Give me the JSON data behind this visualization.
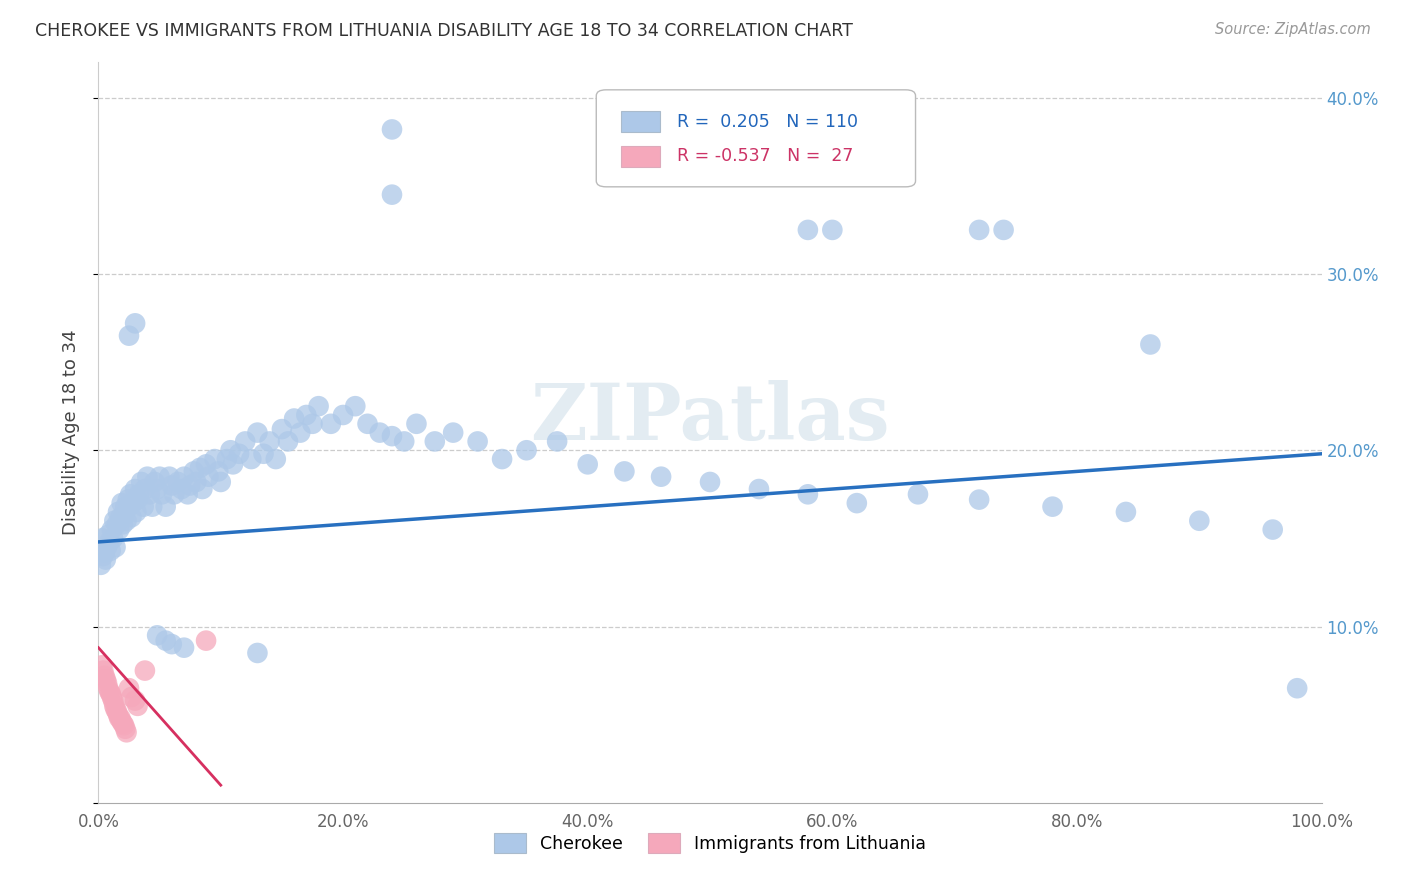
{
  "title": "CHEROKEE VS IMMIGRANTS FROM LITHUANIA DISABILITY AGE 18 TO 34 CORRELATION CHART",
  "source": "Source: ZipAtlas.com",
  "ylabel": "Disability Age 18 to 34",
  "xlim": [
    0.0,
    1.0
  ],
  "ylim": [
    0.0,
    0.42
  ],
  "xtick_vals": [
    0.0,
    0.2,
    0.4,
    0.6,
    0.8,
    1.0
  ],
  "xticklabels": [
    "0.0%",
    "20.0%",
    "40.0%",
    "60.0%",
    "80.0%",
    "100.0%"
  ],
  "ytick_vals": [
    0.0,
    0.1,
    0.2,
    0.3,
    0.4
  ],
  "yticklabels_right": [
    "",
    "10.0%",
    "20.0%",
    "30.0%",
    "40.0%"
  ],
  "cherokee_R": 0.205,
  "cherokee_N": 110,
  "lithuania_R": -0.537,
  "lithuania_N": 27,
  "cherokee_color": "#adc8e8",
  "cherokee_line_color": "#2870c0",
  "lithuania_color": "#f5a8bb",
  "lithuania_line_color": "#d63060",
  "watermark": "ZIPatlas",
  "cherokee_line_x0": 0.0,
  "cherokee_line_y0": 0.148,
  "cherokee_line_x1": 1.0,
  "cherokee_line_y1": 0.198,
  "lithuania_line_x0": 0.0,
  "lithuania_line_y0": 0.088,
  "lithuania_line_x1": 0.1,
  "lithuania_line_y1": 0.01,
  "cherokee_x": [
    0.002,
    0.003,
    0.004,
    0.005,
    0.006,
    0.007,
    0.008,
    0.009,
    0.01,
    0.011,
    0.012,
    0.013,
    0.014,
    0.015,
    0.016,
    0.017,
    0.018,
    0.019,
    0.02,
    0.021,
    0.022,
    0.023,
    0.024,
    0.025,
    0.026,
    0.027,
    0.028,
    0.03,
    0.031,
    0.032,
    0.033,
    0.035,
    0.037,
    0.038,
    0.04,
    0.042,
    0.044,
    0.046,
    0.048,
    0.05,
    0.052,
    0.055,
    0.058,
    0.06,
    0.062,
    0.065,
    0.068,
    0.07,
    0.073,
    0.075,
    0.078,
    0.08,
    0.083,
    0.085,
    0.088,
    0.09,
    0.095,
    0.098,
    0.1,
    0.105,
    0.108,
    0.11,
    0.115,
    0.12,
    0.125,
    0.13,
    0.135,
    0.14,
    0.145,
    0.15,
    0.155,
    0.16,
    0.165,
    0.17,
    0.175,
    0.18,
    0.19,
    0.2,
    0.21,
    0.22,
    0.23,
    0.24,
    0.25,
    0.26,
    0.275,
    0.29,
    0.31,
    0.33,
    0.35,
    0.375,
    0.4,
    0.43,
    0.46,
    0.5,
    0.54,
    0.58,
    0.62,
    0.67,
    0.72,
    0.78,
    0.84,
    0.9,
    0.96,
    0.025,
    0.03,
    0.048,
    0.055,
    0.06,
    0.07,
    0.13
  ],
  "cherokee_y": [
    0.135,
    0.15,
    0.14,
    0.142,
    0.138,
    0.145,
    0.152,
    0.148,
    0.143,
    0.155,
    0.15,
    0.16,
    0.145,
    0.158,
    0.165,
    0.155,
    0.162,
    0.17,
    0.158,
    0.163,
    0.168,
    0.16,
    0.172,
    0.168,
    0.175,
    0.162,
    0.17,
    0.178,
    0.165,
    0.172,
    0.175,
    0.182,
    0.168,
    0.178,
    0.185,
    0.175,
    0.168,
    0.182,
    0.178,
    0.185,
    0.175,
    0.168,
    0.185,
    0.18,
    0.175,
    0.182,
    0.178,
    0.185,
    0.175,
    0.18,
    0.188,
    0.182,
    0.19,
    0.178,
    0.192,
    0.185,
    0.195,
    0.188,
    0.182,
    0.195,
    0.2,
    0.192,
    0.198,
    0.205,
    0.195,
    0.21,
    0.198,
    0.205,
    0.195,
    0.212,
    0.205,
    0.218,
    0.21,
    0.22,
    0.215,
    0.225,
    0.215,
    0.22,
    0.225,
    0.215,
    0.21,
    0.208,
    0.205,
    0.215,
    0.205,
    0.21,
    0.205,
    0.195,
    0.2,
    0.205,
    0.192,
    0.188,
    0.185,
    0.182,
    0.178,
    0.175,
    0.17,
    0.175,
    0.172,
    0.168,
    0.165,
    0.16,
    0.155,
    0.265,
    0.272,
    0.095,
    0.092,
    0.09,
    0.088,
    0.085
  ],
  "cherokee_outliers_x": [
    0.24,
    0.24,
    0.58,
    0.6,
    0.72,
    0.74,
    0.86,
    0.98
  ],
  "cherokee_outliers_y": [
    0.382,
    0.345,
    0.325,
    0.325,
    0.325,
    0.325,
    0.26,
    0.065
  ],
  "lithuania_x": [
    0.003,
    0.004,
    0.005,
    0.006,
    0.007,
    0.008,
    0.009,
    0.01,
    0.011,
    0.012,
    0.013,
    0.014,
    0.015,
    0.016,
    0.017,
    0.018,
    0.019,
    0.02,
    0.021,
    0.022,
    0.023,
    0.025,
    0.027,
    0.03,
    0.032,
    0.038,
    0.088
  ],
  "lithuania_y": [
    0.078,
    0.075,
    0.072,
    0.07,
    0.068,
    0.065,
    0.063,
    0.062,
    0.06,
    0.058,
    0.055,
    0.053,
    0.052,
    0.05,
    0.048,
    0.048,
    0.046,
    0.045,
    0.044,
    0.042,
    0.04,
    0.065,
    0.06,
    0.058,
    0.055,
    0.075,
    0.092
  ]
}
